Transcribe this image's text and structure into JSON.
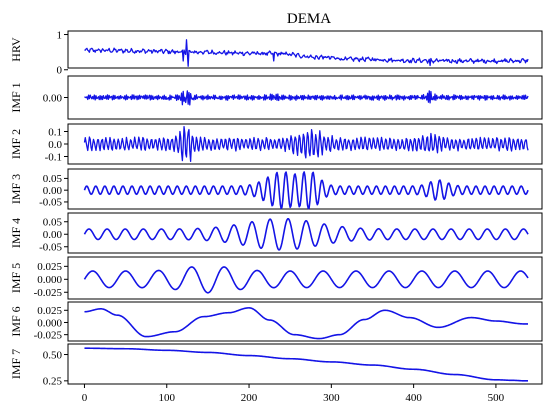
{
  "chart_data": {
    "type": "line",
    "title": "DEMA",
    "line_color": "#1414e6",
    "x_ticks": [
      0,
      100,
      200,
      300,
      400,
      500
    ],
    "xlim": [
      -20,
      556
    ],
    "n_points": 540,
    "panels": [
      {
        "name": "HRV",
        "ylabel": "HRV",
        "ylim": [
          0.05,
          1.1
        ],
        "yticks": [
          {
            "v": 0,
            "t": "0"
          },
          {
            "v": 1,
            "t": "1"
          }
        ],
        "values": [
          0.55,
          0.55,
          0.54,
          0.53,
          0.52,
          0.5,
          0.5,
          0.48,
          0.47,
          0.46,
          0.45,
          0.38,
          0.35,
          0.3,
          0.3,
          0.28,
          0.26,
          0.26,
          0.25,
          0.25,
          0.25,
          0.25,
          0.26
        ],
        "events": [
          [
            120,
            0.5
          ],
          [
            124,
            0.85
          ],
          [
            126,
            0.1
          ],
          [
            120,
            0.25
          ],
          [
            230,
            0.25
          ],
          [
            280,
            0.3
          ],
          [
            420,
            0.12
          ]
        ]
      },
      {
        "name": "IMF 1",
        "ylabel": "IMF 1",
        "ylim": [
          -0.22,
          0.22
        ],
        "yticks": [
          {
            "v": 0,
            "t": "0.00"
          }
        ]
      },
      {
        "name": "IMF 2",
        "ylabel": "IMF 2",
        "ylim": [
          -0.16,
          0.16
        ],
        "yticks": [
          {
            "v": 0.1,
            "t": "0.1"
          },
          {
            "v": 0,
            "t": "0.0"
          },
          {
            "v": -0.1,
            "t": "-0.1"
          }
        ]
      },
      {
        "name": "IMF 3",
        "ylabel": "IMF 3",
        "ylim": [
          -0.08,
          0.09
        ],
        "yticks": [
          {
            "v": 0.05,
            "t": "0.05"
          },
          {
            "v": 0,
            "t": "0.00"
          },
          {
            "v": -0.05,
            "t": "-0.05"
          }
        ]
      },
      {
        "name": "IMF 4",
        "ylabel": "IMF 4",
        "ylim": [
          -0.075,
          0.085
        ],
        "yticks": [
          {
            "v": 0.05,
            "t": "0.05"
          },
          {
            "v": 0,
            "t": "0.00"
          },
          {
            "v": -0.05,
            "t": "-0.05"
          }
        ]
      },
      {
        "name": "IMF 5",
        "ylabel": "IMF 5",
        "ylim": [
          -0.038,
          0.043
        ],
        "yticks": [
          {
            "v": 0.025,
            "t": "0.025"
          },
          {
            "v": 0,
            "t": "0.000"
          },
          {
            "v": -0.025,
            "t": "-0.025"
          }
        ]
      },
      {
        "name": "IMF 6",
        "ylabel": "IMF 6",
        "ylim": [
          -0.038,
          0.042
        ],
        "yticks": [
          {
            "v": 0.025,
            "t": "0.025"
          },
          {
            "v": 0,
            "t": "0.000"
          },
          {
            "v": -0.025,
            "t": "-0.025"
          }
        ],
        "points": [
          [
            0,
            0.022
          ],
          [
            20,
            0.028
          ],
          [
            40,
            0.015
          ],
          [
            75,
            -0.029
          ],
          [
            110,
            -0.019
          ],
          [
            145,
            0.012
          ],
          [
            175,
            0.02
          ],
          [
            200,
            0.03
          ],
          [
            225,
            0.005
          ],
          [
            255,
            -0.025
          ],
          [
            285,
            -0.033
          ],
          [
            310,
            -0.025
          ],
          [
            340,
            0.006
          ],
          [
            365,
            0.025
          ],
          [
            395,
            0.01
          ],
          [
            430,
            -0.01
          ],
          [
            470,
            0.01
          ],
          [
            500,
            0.003
          ],
          [
            535,
            -0.003
          ]
        ]
      },
      {
        "name": "IMF 7",
        "ylabel": "IMF 7",
        "ylim": [
          0.22,
          0.6
        ],
        "yticks": [
          {
            "v": 0.5,
            "t": "0.50"
          },
          {
            "v": 0.25,
            "t": "0.25"
          }
        ],
        "points": [
          [
            0,
            0.56
          ],
          [
            50,
            0.555
          ],
          [
            100,
            0.54
          ],
          [
            150,
            0.52
          ],
          [
            200,
            0.49
          ],
          [
            250,
            0.46
          ],
          [
            300,
            0.43
          ],
          [
            350,
            0.4
          ],
          [
            400,
            0.36
          ],
          [
            450,
            0.31
          ],
          [
            500,
            0.26
          ],
          [
            520,
            0.255
          ],
          [
            535,
            0.25
          ]
        ]
      }
    ]
  }
}
